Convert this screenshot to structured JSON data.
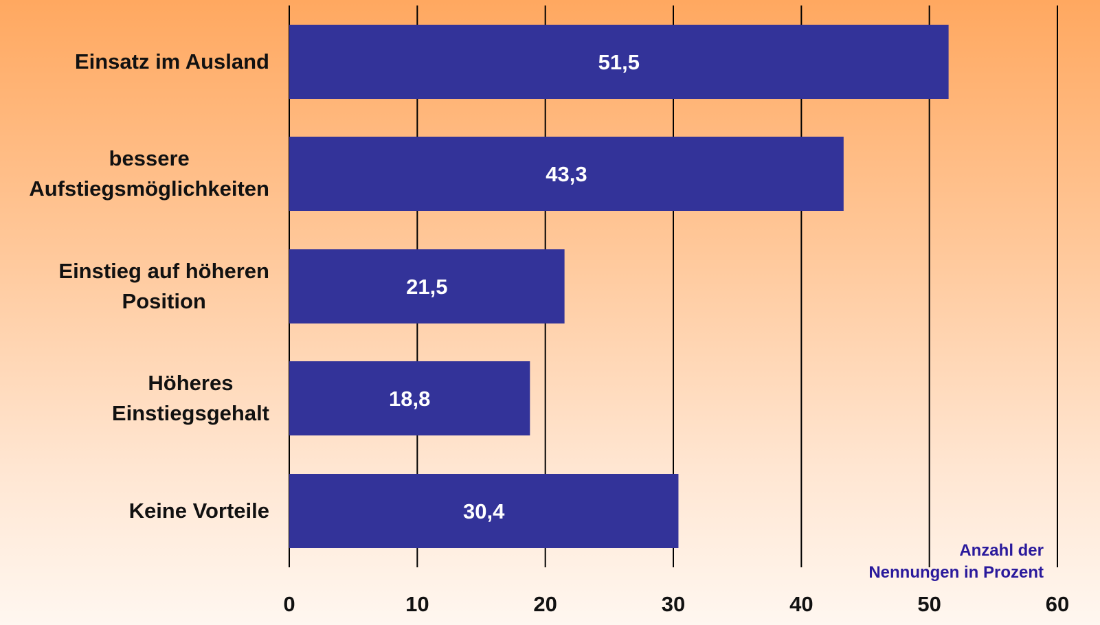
{
  "chart_data": {
    "type": "bar",
    "orientation": "horizontal",
    "categories": [
      "Einsatz im Ausland",
      "bessere Aufstiegsmöglichkeiten",
      "Einstieg auf höheren Position",
      "Höheres Einstiegsgehalt",
      "Keine Vorteile"
    ],
    "category_lines": [
      [
        "Einsatz im Ausland"
      ],
      [
        "bessere",
        "Aufstiegsmöglichkeiten"
      ],
      [
        "Einstieg auf höheren",
        "Position"
      ],
      [
        "Höheres",
        "Einstiegsgehalt"
      ],
      [
        "Keine Vorteile"
      ]
    ],
    "values": [
      51.5,
      43.3,
      21.5,
      18.8,
      30.4
    ],
    "value_labels": [
      "51,5",
      "43,3",
      "21,5",
      "18,8",
      "30,4"
    ],
    "xlim": [
      0,
      60
    ],
    "ticks": [
      0,
      10,
      20,
      30,
      40,
      50,
      60
    ],
    "tick_labels": [
      "0",
      "10",
      "20",
      "30",
      "40",
      "50",
      "60"
    ],
    "xlabel": "Anzahl der Nennungen in Prozent",
    "xlabel_lines": [
      "Anzahl der",
      "Nennungen in Prozent"
    ],
    "grid": true,
    "colors": {
      "bar": "#333399",
      "value_label": "#ffffff",
      "grid": "#000000",
      "axis_title": "#2a1a9c",
      "text": "#111111"
    }
  }
}
